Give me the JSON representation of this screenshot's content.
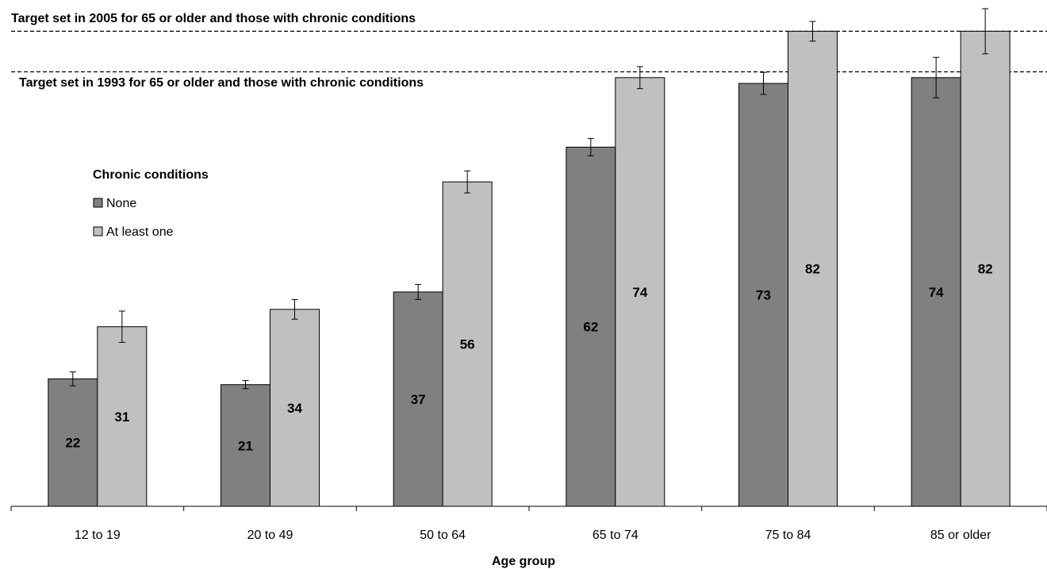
{
  "chart_data": {
    "type": "bar",
    "title": "",
    "xlabel": "Age group",
    "ylabel": "",
    "ylim": [
      0,
      90
    ],
    "grid": false,
    "categories": [
      "12 to 19",
      "20 to 49",
      "50 to 64",
      "65 to 74",
      "75 to 84",
      "85 or older"
    ],
    "legend": {
      "title": "Chronic conditions",
      "placement": "left"
    },
    "series": [
      {
        "name": "None",
        "color": "#808080",
        "values": [
          22,
          21,
          37,
          62,
          73,
          74
        ],
        "error": [
          1.2,
          0.7,
          1.3,
          1.5,
          1.9,
          3.5
        ],
        "labels": [
          "22",
          "21",
          "37",
          "62",
          "73",
          "74"
        ]
      },
      {
        "name": "At least one",
        "color": "#c0c0c0",
        "values": [
          31,
          34,
          56,
          74,
          82,
          82
        ],
        "error": [
          2.7,
          1.7,
          1.9,
          1.9,
          1.7,
          3.9
        ],
        "labels": [
          "31",
          "34",
          "56",
          "74",
          "82",
          "82"
        ]
      }
    ],
    "reference_lines": [
      {
        "label": "Target set in 2005 for 65 or older and those with chronic conditions",
        "value": 82
      },
      {
        "label": "Target set in 1993 for 65 or older and those with chronic conditions",
        "value": 75
      }
    ]
  }
}
